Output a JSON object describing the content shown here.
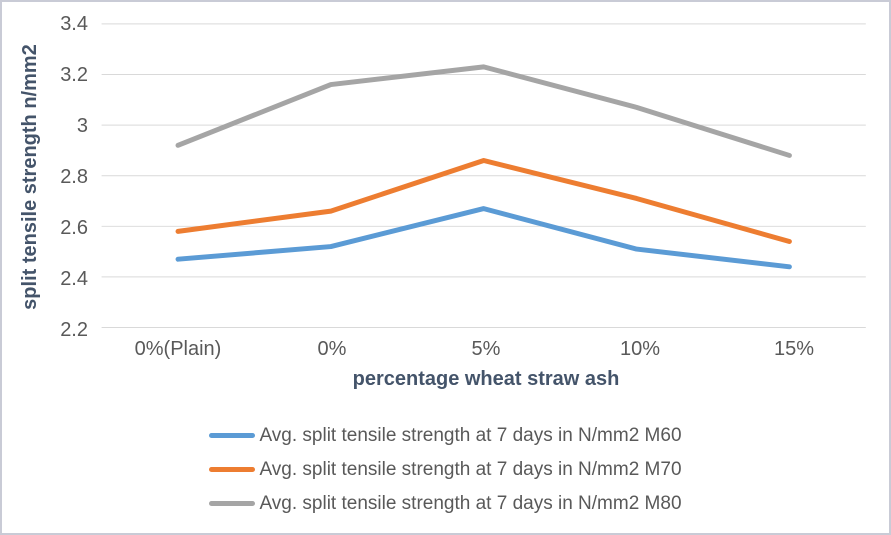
{
  "chart_data": {
    "type": "line",
    "title": "",
    "categories": [
      "0%(Plain)",
      "0%",
      "5%",
      "10%",
      "15%"
    ],
    "series": [
      {
        "name": "Avg. split tensile strength at 7 days in N/mm2 M60",
        "color": "#5B9BD5",
        "values": [
          2.47,
          2.52,
          2.67,
          2.51,
          2.44
        ]
      },
      {
        "name": "Avg. split tensile strength at 7 days in N/mm2 M70",
        "color": "#ED7D31",
        "values": [
          2.58,
          2.66,
          2.86,
          2.71,
          2.54
        ]
      },
      {
        "name": "Avg. split tensile strength at 7 days in N/mm2 M80",
        "color": "#A5A5A5",
        "values": [
          2.92,
          3.16,
          3.23,
          3.07,
          2.88
        ]
      }
    ],
    "xlabel": "percentage wheat straw ash",
    "ylabel": "split tensile strength n/mm2",
    "ylim": [
      2.2,
      3.4
    ],
    "ytick_step": 0.2,
    "ytick_labels": [
      "3.4",
      "3.2",
      "3",
      "2.8",
      "2.6",
      "2.4",
      "2.2"
    ],
    "grid": true,
    "legend_position": "bottom"
  },
  "colors": {
    "gridline": "#D9D9D9",
    "tick_label": "#595959",
    "axis_title": "#44546A",
    "legend_text": "#595959",
    "background": "#FFFFFF",
    "border": "#C9CBD6"
  }
}
